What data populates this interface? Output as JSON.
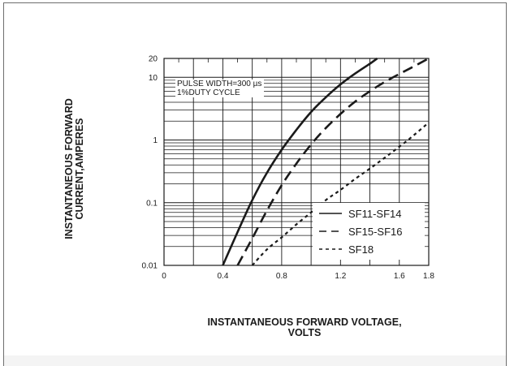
{
  "chart_data": {
    "type": "line",
    "xlabel_lines": [
      "INSTANTANEOUS FORWARD VOLTAGE,",
      "VOLTS"
    ],
    "ylabel_lines": [
      "INSTANTANEOUS FORWARD",
      "CURRENT,AMPERES"
    ],
    "y_scale": "log",
    "xlim": [
      0,
      1.8
    ],
    "ylim": [
      0.01,
      20
    ],
    "x_ticks": [
      "0",
      "0.4",
      "0.8",
      "1.2",
      "1.6",
      "1.8"
    ],
    "y_ticks": [
      "0.01",
      "0.1",
      "1",
      "10",
      "20"
    ],
    "grid": true,
    "legend_position": "bottom-right",
    "annotation_lines": [
      "PULSE WIDTH=300 µs",
      "1%DUTY CYCLE"
    ],
    "series": [
      {
        "name": "SF11-SF14",
        "line_style": "solid",
        "x": [
          0.4,
          0.5,
          0.6,
          0.7,
          0.8,
          0.9,
          1.0,
          1.1,
          1.2,
          1.3,
          1.4,
          1.45
        ],
        "y": [
          0.01,
          0.034,
          0.11,
          0.3,
          0.7,
          1.45,
          2.8,
          4.8,
          7.7,
          11.5,
          16.5,
          20
        ]
      },
      {
        "name": "SF15-SF16",
        "line_style": "dashed",
        "x": [
          0.5,
          0.6,
          0.7,
          0.8,
          0.9,
          1.0,
          1.1,
          1.2,
          1.3,
          1.4,
          1.5,
          1.6,
          1.7,
          1.8
        ],
        "y": [
          0.01,
          0.027,
          0.075,
          0.19,
          0.42,
          0.85,
          1.55,
          2.6,
          4.1,
          6.0,
          8.4,
          11.3,
          15,
          20
        ]
      },
      {
        "name": "SF18",
        "line_style": "dotted",
        "x": [
          0.6,
          0.7,
          0.8,
          0.9,
          1.0,
          1.1,
          1.2,
          1.3,
          1.4,
          1.5,
          1.6,
          1.7,
          1.8
        ],
        "y": [
          0.01,
          0.018,
          0.028,
          0.045,
          0.07,
          0.11,
          0.16,
          0.24,
          0.35,
          0.52,
          0.78,
          1.2,
          1.9
        ]
      }
    ]
  },
  "colors": {
    "ink": "#1a1a1a",
    "frame": "#6e6e6e"
  }
}
